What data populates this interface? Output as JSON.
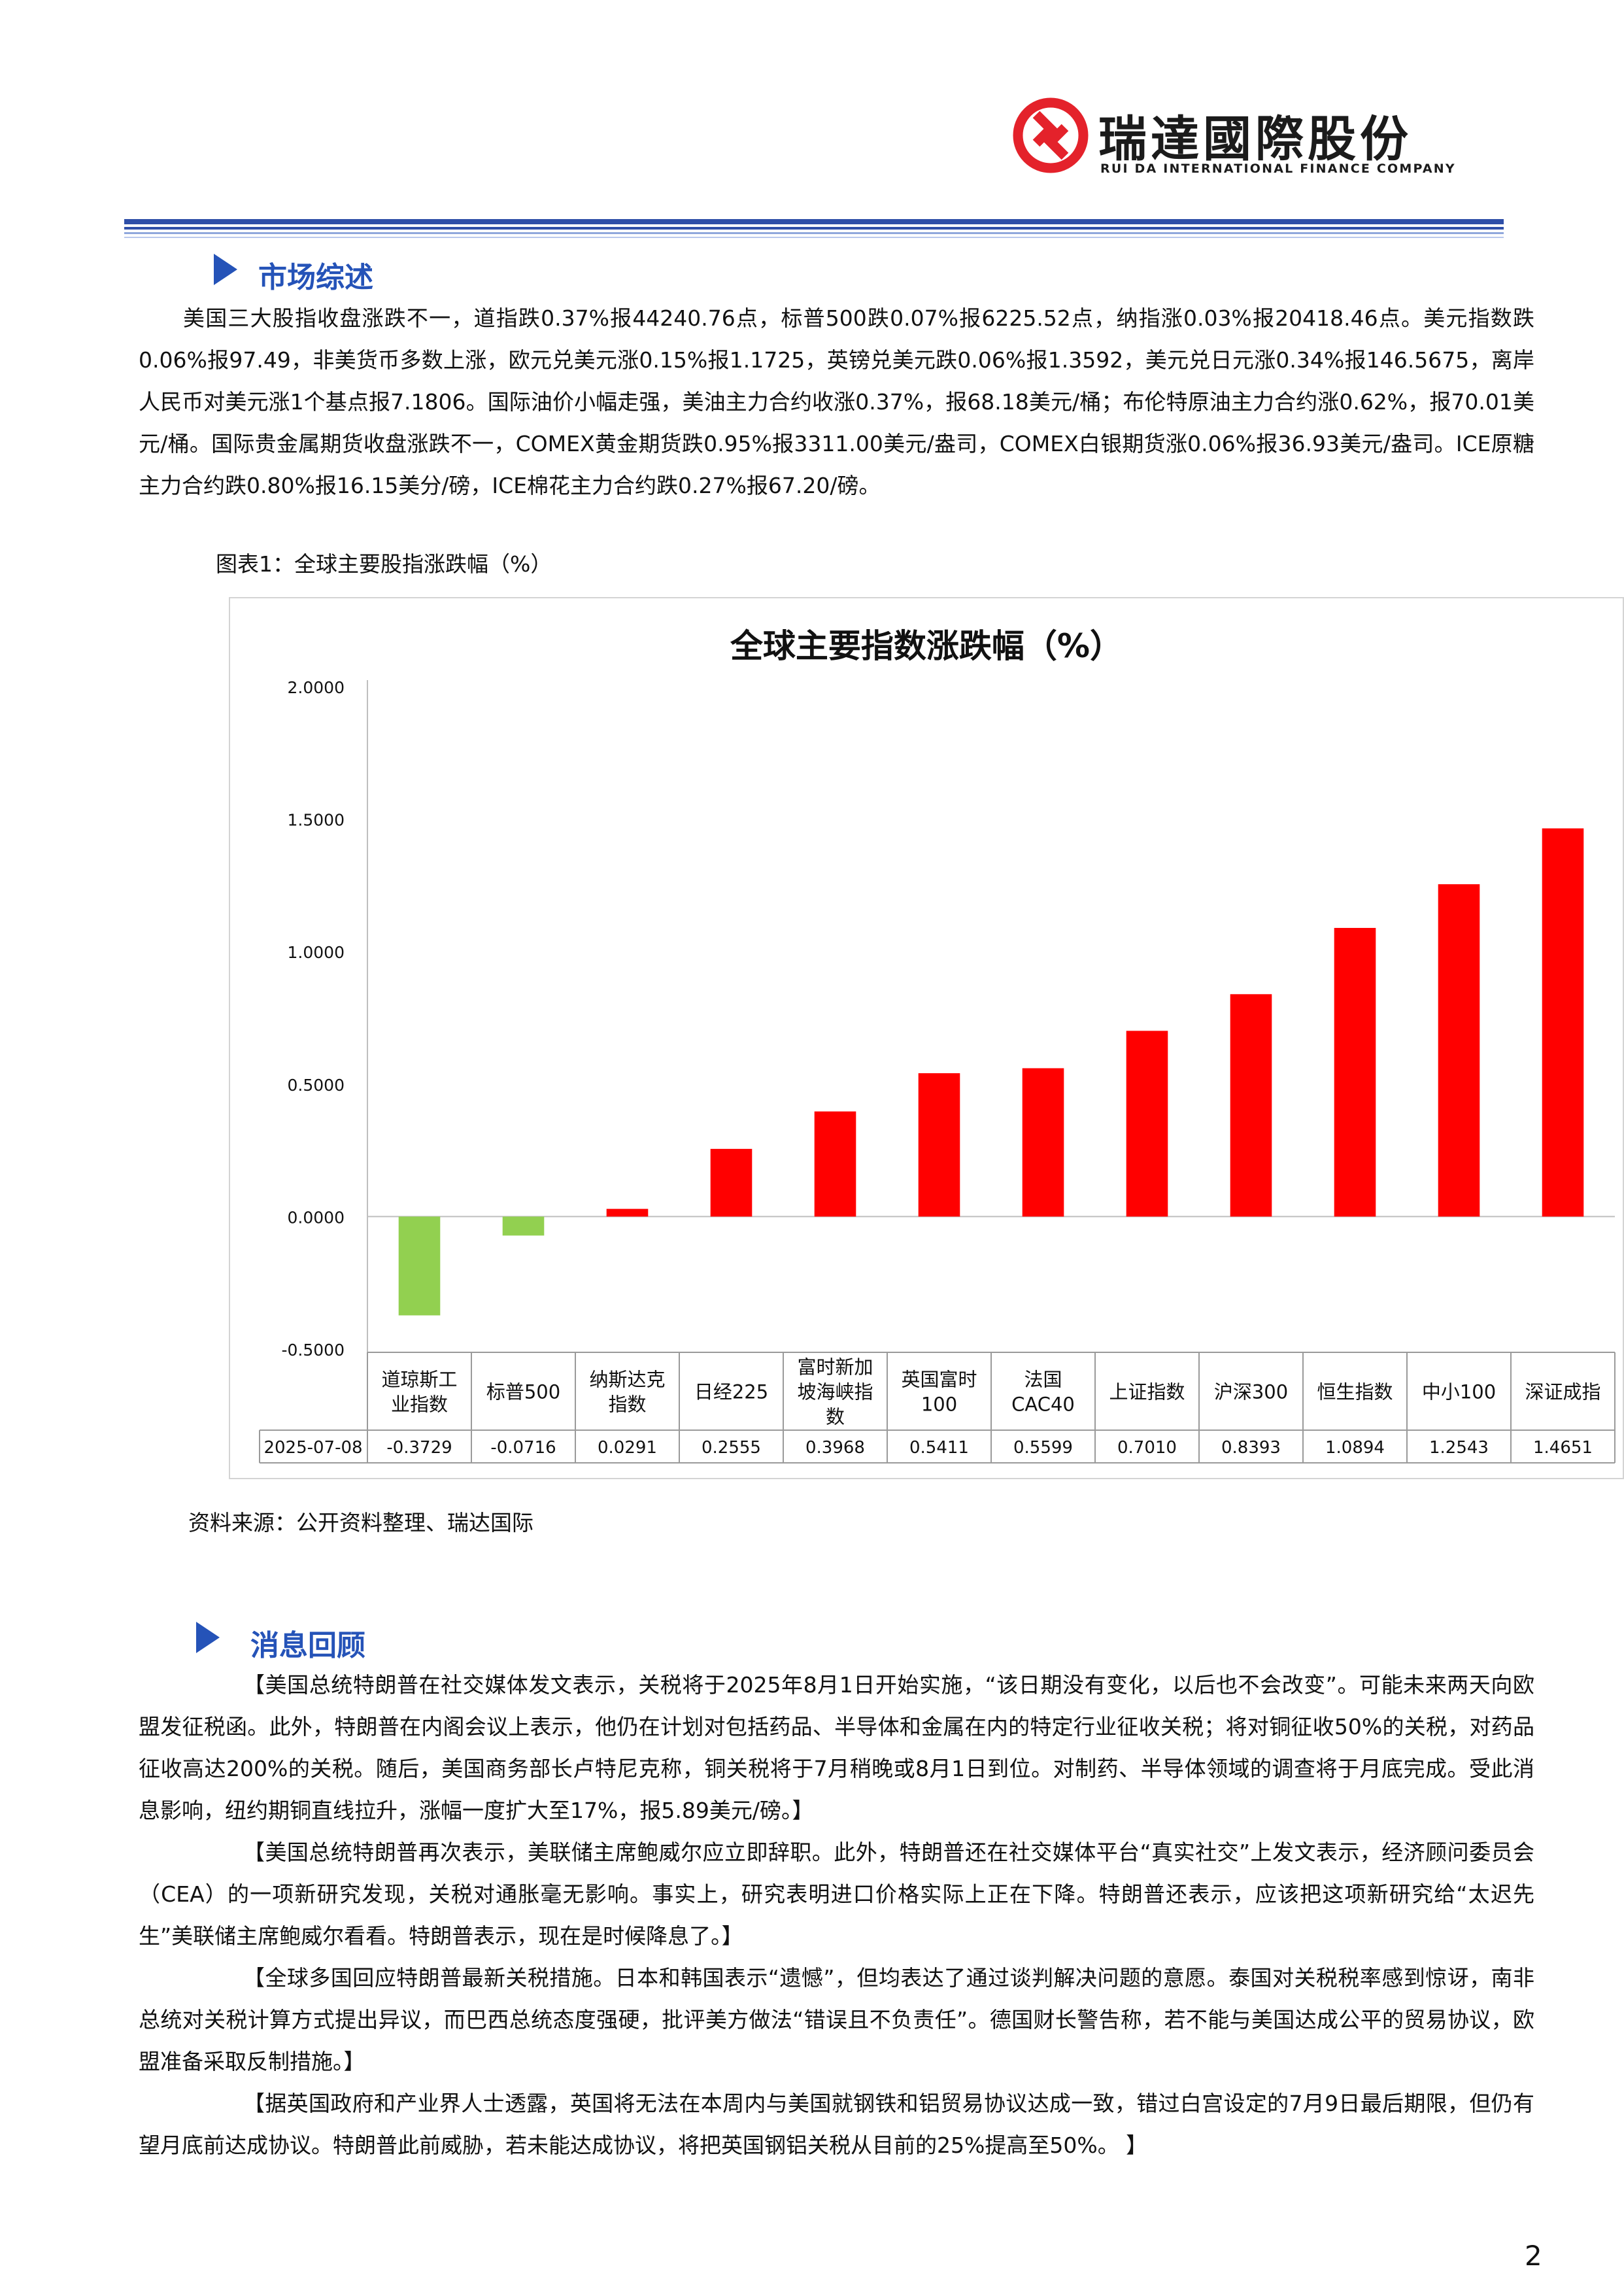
{
  "header": {
    "company_cn": "瑞達國際股份",
    "company_en": "RUI DA INTERNATIONAL FINANCE COMPANY"
  },
  "market": {
    "title": "市场综述",
    "text": "美国三大股指收盘涨跌不一，道指跌0.37%报44240.76点，标普500跌0.07%报6225.52点，纳指涨0.03%报20418.46点。美元指数跌0.06%报97.49，非美货币多数上涨，欧元兑美元涨0.15%报1.1725，英镑兑美元跌0.06%报1.3592，美元兑日元涨0.34%报146.5675，离岸人民币对美元涨1个基点报7.1806。国际油价小幅走强，美油主力合约收涨0.37%，报68.18美元/桶；布伦特原油主力合约涨0.62%，报70.01美元/桶。国际贵金属期货收盘涨跌不一，COMEX黄金期货跌0.95%报3311.00美元/盎司，COMEX白银期货涨0.06%报36.93美元/盎司。ICE原糖主力合约跌0.80%报16.15美分/磅，ICE棉花主力合约跌0.27%报67.20/磅。"
  },
  "figure": {
    "caption": "图表1：全球主要股指涨跌幅（%）",
    "source": "资料来源：公开资料整理、瑞达国际"
  },
  "chart_data": {
    "type": "bar",
    "title": "全球主要指数涨跌幅（%）",
    "categories": [
      "道琼斯工业指数",
      "标普500",
      "纳斯达克指数",
      "日经225",
      "富时新加坡海峡指数",
      "英国富时100",
      "法国CAC40",
      "上证指数",
      "沪深300",
      "恒生指数",
      "中小100",
      "深证成指"
    ],
    "category_lines": [
      [
        "道琼斯工",
        "业指数"
      ],
      [
        "标普500"
      ],
      [
        "纳斯达克",
        "指数"
      ],
      [
        "日经225"
      ],
      [
        "富时新加",
        "坡海峡指",
        "数"
      ],
      [
        "英国富时",
        "100"
      ],
      [
        "法国",
        "CAC40"
      ],
      [
        "上证指数"
      ],
      [
        "沪深300"
      ],
      [
        "恒生指数"
      ],
      [
        "中小100"
      ],
      [
        "深证成指"
      ]
    ],
    "series": [
      {
        "name": "2025-07-08",
        "values": [
          -0.3729,
          -0.0716,
          0.0291,
          0.2555,
          0.3968,
          0.5411,
          0.5599,
          0.701,
          0.8393,
          1.0894,
          1.2543,
          1.4651
        ]
      }
    ],
    "value_labels": [
      "-0.3729",
      "-0.0716",
      "0.0291",
      "0.2555",
      "0.3968",
      "0.5411",
      "0.5599",
      "0.7010",
      "0.8393",
      "1.0894",
      "1.2543",
      "1.4651"
    ],
    "yticks": [
      "2.0000",
      "1.5000",
      "1.0000",
      "0.5000",
      "0.0000",
      "-0.5000"
    ],
    "ylim": [
      -0.5,
      2.0
    ],
    "positive_color": "#ff0000",
    "negative_color": "#92d050",
    "grid": false,
    "legend": "data table below axis"
  },
  "news": {
    "title": "消息回顾",
    "items": [
      "【美国总统特朗普在社交媒体发文表示，关税将于2025年8月1日开始实施，“该日期没有变化，以后也不会改变”。可能未来两天向欧盟发征税函。此外，特朗普在内阁会议上表示，他仍在计划对包括药品、半导体和金属在内的特定行业征收关税；将对铜征收50%的关税，对药品征收高达200%的关税。随后，美国商务部长卢特尼克称，铜关税将于7月稍晚或8月1日到位。对制药、半导体领域的调查将于月底完成。受此消息影响，纽约期铜直线拉升，涨幅一度扩大至17%，报5.89美元/磅。】",
      "【美国总统特朗普再次表示，美联储主席鲍威尔应立即辞职。此外，特朗普还在社交媒体平台“真实社交”上发文表示，经济顾问委员会（CEA）的一项新研究发现，关税对通胀毫无影响。事实上，研究表明进口价格实际上正在下降。特朗普还表示，应该把这项新研究给“太迟先生”美联储主席鲍威尔看看。特朗普表示，现在是时候降息了。】",
      "【全球多国回应特朗普最新关税措施。日本和韩国表示“遗憾”，但均表达了通过谈判解决问题的意愿。泰国对关税税率感到惊讶，南非总统对关税计算方式提出异议，而巴西总统态度强硬，批评美方做法“错误且不负责任”。德国财长警告称，若不能与美国达成公平的贸易协议，欧盟准备采取反制措施。】",
      "【据英国政府和产业界人士透露，英国将无法在本周内与美国就钢铁和铝贸易协议达成一致，错过白宫设定的7月9日最后期限，但仍有望月底前达成协议。特朗普此前威胁，若未能达成协议，将把英国钢铝关税从目前的25%提高至50%。 】"
    ]
  },
  "footer": {
    "page": "2"
  }
}
